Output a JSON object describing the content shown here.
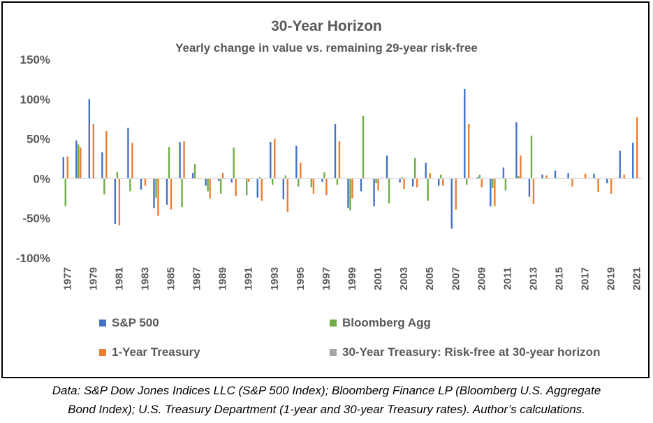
{
  "chart_data": {
    "type": "bar",
    "title": "30-Year Horizon",
    "subtitle": "Yearly change in value vs. remaining 29-year risk-free",
    "xlabel": "",
    "ylabel": "",
    "ylim": [
      -1.0,
      1.5
    ],
    "y_ticks": [
      "150%",
      "100%",
      "50%",
      "0%",
      "-50%",
      "-100%"
    ],
    "grid": false,
    "legend_position": "bottom",
    "categories": [
      "1977",
      "1978",
      "1979",
      "1980",
      "1981",
      "1982",
      "1983",
      "1984",
      "1985",
      "1986",
      "1987",
      "1988",
      "1989",
      "1990",
      "1991",
      "1992",
      "1993",
      "1994",
      "1995",
      "1996",
      "1997",
      "1998",
      "1999",
      "2000",
      "2001",
      "2002",
      "2003",
      "2004",
      "2005",
      "2006",
      "2007",
      "2008",
      "2009",
      "2010",
      "2011",
      "2012",
      "2013",
      "2014",
      "2015",
      "2016",
      "2017",
      "2018",
      "2019",
      "2020",
      "2021"
    ],
    "x_tick_labels": [
      "1977",
      "1979",
      "1981",
      "1983",
      "1985",
      "1987",
      "1989",
      "1991",
      "1993",
      "1995",
      "1997",
      "1999",
      "2001",
      "2003",
      "2005",
      "2007",
      "2009",
      "2011",
      "2013",
      "2015",
      "2017",
      "2019",
      "2021"
    ],
    "series": [
      {
        "name": "S&P 500",
        "color": "#4472C4",
        "values": [
          0.27,
          0.48,
          1.0,
          0.33,
          -0.57,
          0.64,
          -0.14,
          -0.37,
          -0.33,
          0.46,
          0.07,
          -0.09,
          -0.03,
          -0.05,
          0.0,
          -0.24,
          0.46,
          -0.26,
          0.41,
          0.0,
          -0.04,
          0.69,
          -0.37,
          -0.16,
          -0.35,
          0.29,
          -0.05,
          -0.1,
          0.2,
          -0.09,
          -0.63,
          1.13,
          0.02,
          -0.35,
          0.14,
          0.71,
          -0.23,
          0.05,
          0.1,
          0.07,
          0.0,
          0.06,
          -0.06,
          0.35,
          0.45
        ]
      },
      {
        "name": "Bloomberg Agg",
        "color": "#70AD47",
        "values": [
          -0.35,
          0.43,
          0.0,
          -0.2,
          0.08,
          -0.16,
          0.0,
          -0.24,
          0.4,
          -0.36,
          0.18,
          -0.16,
          -0.19,
          0.39,
          -0.21,
          0.02,
          -0.08,
          0.04,
          -0.1,
          -0.11,
          0.08,
          -0.08,
          -0.4,
          0.79,
          -0.06,
          -0.31,
          0.02,
          0.26,
          -0.28,
          0.05,
          0.0,
          -0.08,
          0.05,
          -0.12,
          -0.15,
          0.03,
          0.54,
          0.0,
          0.0,
          0.0,
          0.0,
          0.0,
          0.0,
          0.0,
          0.0
        ]
      },
      {
        "name": "1-Year Treasury",
        "color": "#ED7D31",
        "values": [
          0.28,
          0.39,
          0.69,
          0.6,
          -0.59,
          0.45,
          -0.09,
          -0.47,
          -0.39,
          0.47,
          0.0,
          -0.25,
          0.07,
          -0.22,
          -0.04,
          -0.28,
          0.5,
          -0.42,
          0.2,
          -0.19,
          -0.21,
          0.47,
          -0.25,
          0.0,
          -0.15,
          0.0,
          -0.13,
          -0.11,
          0.07,
          -0.09,
          -0.39,
          0.69,
          -0.11,
          -0.35,
          0.0,
          0.29,
          -0.32,
          0.04,
          0.0,
          -0.1,
          0.06,
          -0.17,
          -0.19,
          0.05,
          0.77
        ]
      },
      {
        "name": "30-Year Treasury: Risk-free at 30-year horizon",
        "color": "#A5A5A5",
        "values": [
          0,
          0,
          0,
          0,
          0,
          0,
          0,
          0,
          0,
          0,
          0,
          0,
          0,
          0,
          0,
          0,
          0,
          0,
          0,
          0,
          0,
          0,
          0,
          0,
          0,
          0,
          0,
          0,
          0,
          0,
          0,
          0,
          0,
          0,
          0,
          0,
          0,
          0,
          0,
          0,
          0,
          0,
          0,
          0,
          0
        ]
      }
    ]
  },
  "caption": {
    "line1": "Data: S&P Dow Jones Indices LLC (S&P 500 Index); Bloomberg Finance LP (Bloomberg U.S. Aggregate",
    "line2": "Bond Index); U.S. Treasury Department (1-year and 30-year Treasury rates). Author’s calculations."
  }
}
